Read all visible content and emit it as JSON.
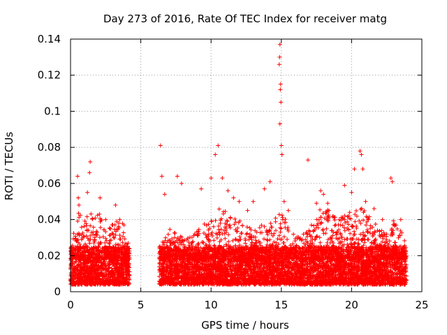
{
  "chart_data": {
    "type": "scatter",
    "title": "Day 273 of 2016, Rate Of TEC Index for receiver matg",
    "xlabel": "GPS time / hours",
    "ylabel": "ROTI / TECUs",
    "xlim": [
      0,
      25
    ],
    "ylim": [
      0,
      0.14
    ],
    "x_ticks": [
      0,
      5,
      10,
      15,
      20,
      25
    ],
    "x_tick_labels": [
      "0",
      "5",
      "10",
      "15",
      "20",
      "25"
    ],
    "y_ticks": [
      0,
      0.02,
      0.04,
      0.06,
      0.08,
      0.1,
      0.12,
      0.14
    ],
    "y_tick_labels": [
      "0",
      "0.02",
      "0.04",
      "0.06",
      "0.08",
      "0.1",
      "0.12",
      "0.14"
    ],
    "grid": true,
    "marker": "+",
    "series": [
      {
        "name": "ROTI",
        "color": "#ff0000",
        "points": [
          [
            0.5,
            0.064
          ],
          [
            0.55,
            0.052
          ],
          [
            0.6,
            0.048
          ],
          [
            1.4,
            0.072
          ],
          [
            1.35,
            0.066
          ],
          [
            1.2,
            0.055
          ],
          [
            2.1,
            0.052
          ],
          [
            2.5,
            0.04
          ],
          [
            3.2,
            0.048
          ],
          [
            3.5,
            0.04
          ],
          [
            3.8,
            0.037
          ],
          [
            6.4,
            0.081
          ],
          [
            6.5,
            0.064
          ],
          [
            6.7,
            0.054
          ],
          [
            7.6,
            0.064
          ],
          [
            7.9,
            0.06
          ],
          [
            9.3,
            0.057
          ],
          [
            10.0,
            0.063
          ],
          [
            10.3,
            0.076
          ],
          [
            10.5,
            0.081
          ],
          [
            10.8,
            0.063
          ],
          [
            11.2,
            0.056
          ],
          [
            11.6,
            0.052
          ],
          [
            12.0,
            0.05
          ],
          [
            12.6,
            0.045
          ],
          [
            13.0,
            0.05
          ],
          [
            13.8,
            0.057
          ],
          [
            14.2,
            0.061
          ],
          [
            14.9,
            0.137
          ],
          [
            14.88,
            0.13
          ],
          [
            14.85,
            0.126
          ],
          [
            14.95,
            0.115
          ],
          [
            14.93,
            0.112
          ],
          [
            14.97,
            0.105
          ],
          [
            14.9,
            0.093
          ],
          [
            15.0,
            0.081
          ],
          [
            15.05,
            0.076
          ],
          [
            15.2,
            0.05
          ],
          [
            15.5,
            0.045
          ],
          [
            16.9,
            0.073
          ],
          [
            17.5,
            0.049
          ],
          [
            17.8,
            0.056
          ],
          [
            18.0,
            0.054
          ],
          [
            18.3,
            0.049
          ],
          [
            19.5,
            0.059
          ],
          [
            20.0,
            0.055
          ],
          [
            20.2,
            0.068
          ],
          [
            20.6,
            0.078
          ],
          [
            20.7,
            0.076
          ],
          [
            20.8,
            0.068
          ],
          [
            21.0,
            0.05
          ],
          [
            21.6,
            0.046
          ],
          [
            22.2,
            0.04
          ],
          [
            22.8,
            0.063
          ],
          [
            22.9,
            0.061
          ],
          [
            23.5,
            0.04
          ]
        ]
      }
    ],
    "dense_band": {
      "segments": [
        [
          0,
          4.2
        ],
        [
          6.3,
          23.9
        ]
      ],
      "roti_range": [
        0.004,
        0.025
      ],
      "description": "continuous band of dense ROTI samples"
    },
    "activity_envelope": {
      "hours": [
        0,
        0.5,
        1,
        1.5,
        2,
        2.5,
        3,
        3.5,
        4,
        4.2,
        6.3,
        7,
        8,
        9,
        10,
        10.5,
        11,
        12,
        13,
        14,
        15,
        16,
        17,
        17.5,
        18,
        19,
        20,
        20.5,
        21,
        22,
        22.5,
        23,
        23.5,
        23.9
      ],
      "roti_upper": [
        0.025,
        0.045,
        0.04,
        0.045,
        0.045,
        0.035,
        0.038,
        0.04,
        0.035,
        0.025,
        0.025,
        0.035,
        0.03,
        0.035,
        0.04,
        0.048,
        0.045,
        0.04,
        0.035,
        0.04,
        0.045,
        0.03,
        0.035,
        0.045,
        0.05,
        0.04,
        0.045,
        0.048,
        0.045,
        0.035,
        0.033,
        0.04,
        0.035,
        0.025
      ]
    }
  }
}
